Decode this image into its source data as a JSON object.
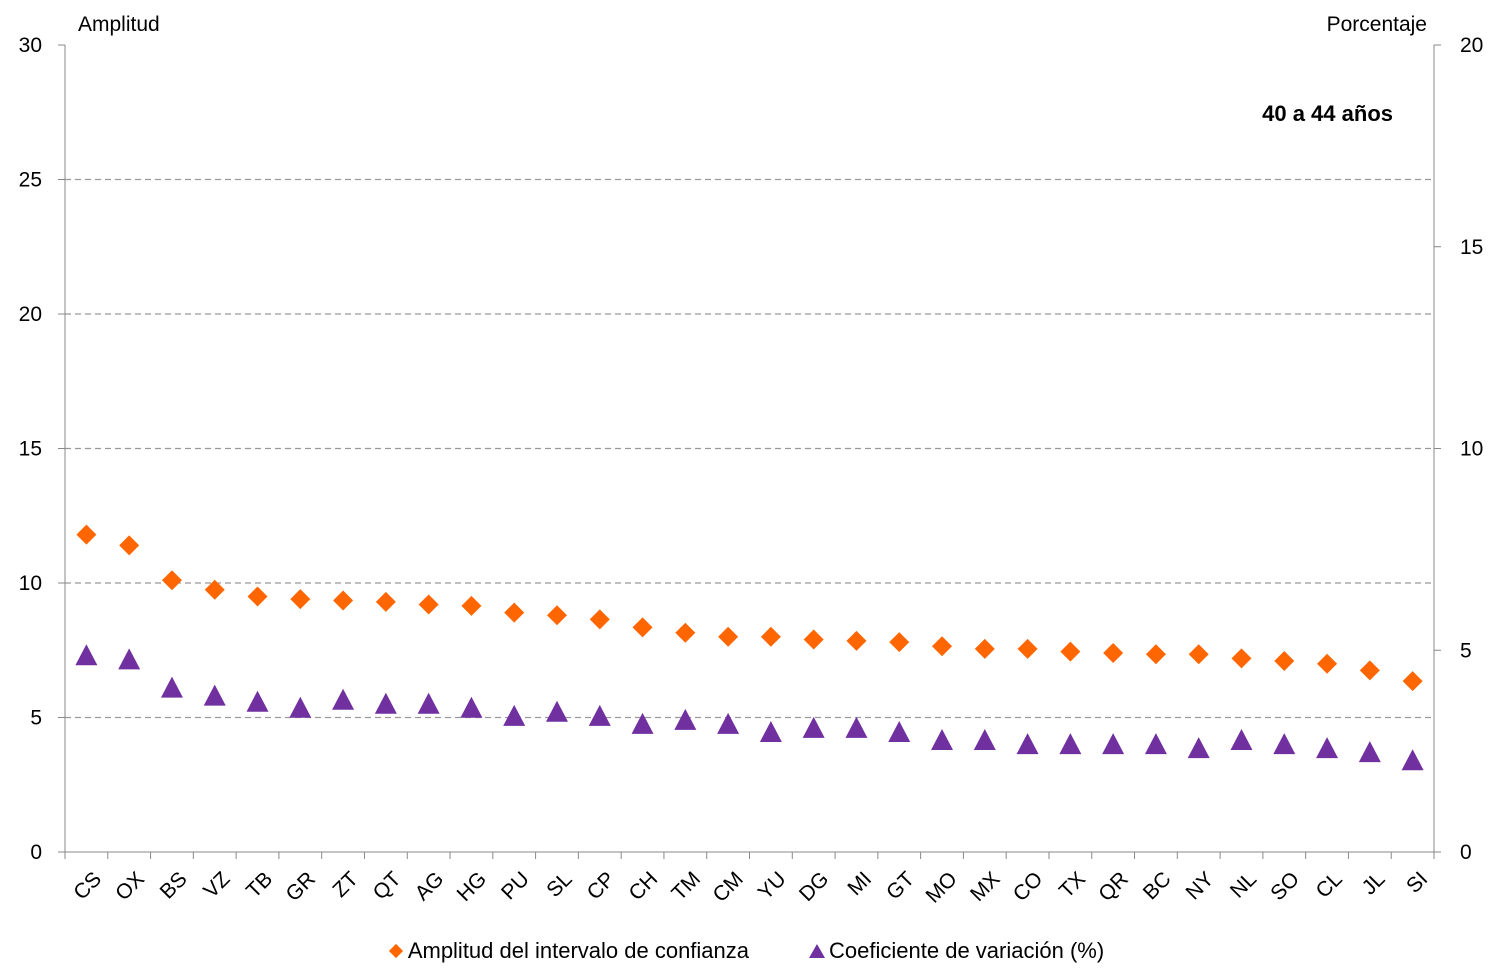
{
  "chart_data": {
    "type": "scatter",
    "annotation": "40 a 44 años",
    "y_left_label": "Amplitud",
    "y_right_label": "Porcentaje",
    "y_left_lim": [
      0,
      30
    ],
    "y_left_ticks": [
      "0",
      "5",
      "10",
      "15",
      "20",
      "25",
      "30"
    ],
    "y_right_lim": [
      0,
      20
    ],
    "y_right_ticks": [
      "0",
      "5",
      "10",
      "15",
      "20"
    ],
    "grid": "horizontal dashed",
    "legend_position": "bottom",
    "categories": [
      "CS",
      "OX",
      "BS",
      "VZ",
      "TB",
      "GR",
      "ZT",
      "QT",
      "AG",
      "HG",
      "PU",
      "SL",
      "CP",
      "CH",
      "TM",
      "CM",
      "YU",
      "DG",
      "MI",
      "GT",
      "MO",
      "MX",
      "CO",
      "TX",
      "QR",
      "BC",
      "NY",
      "NL",
      "SO",
      "CL",
      "JL",
      "SI"
    ],
    "series": [
      {
        "name": "Amplitud del intervalo de confianza",
        "axis": "left",
        "marker": "diamond",
        "color": "#ff6600",
        "values": [
          11.8,
          11.4,
          10.1,
          9.75,
          9.5,
          9.4,
          9.35,
          9.3,
          9.2,
          9.15,
          8.9,
          8.8,
          8.65,
          8.35,
          8.15,
          8.0,
          8.0,
          7.9,
          7.85,
          7.8,
          7.65,
          7.55,
          7.55,
          7.45,
          7.4,
          7.35,
          7.35,
          7.2,
          7.1,
          7.0,
          6.75,
          6.35
        ]
      },
      {
        "name": "Coeficiente de variación (%)",
        "axis": "right",
        "marker": "triangle",
        "color": "#7030a0",
        "values": [
          4.85,
          4.75,
          4.05,
          3.85,
          3.7,
          3.55,
          3.75,
          3.65,
          3.65,
          3.55,
          3.35,
          3.45,
          3.35,
          3.15,
          3.25,
          3.15,
          2.95,
          3.05,
          3.05,
          2.95,
          2.75,
          2.75,
          2.65,
          2.65,
          2.65,
          2.65,
          2.55,
          2.75,
          2.65,
          2.55,
          2.45,
          2.25
        ]
      }
    ]
  }
}
